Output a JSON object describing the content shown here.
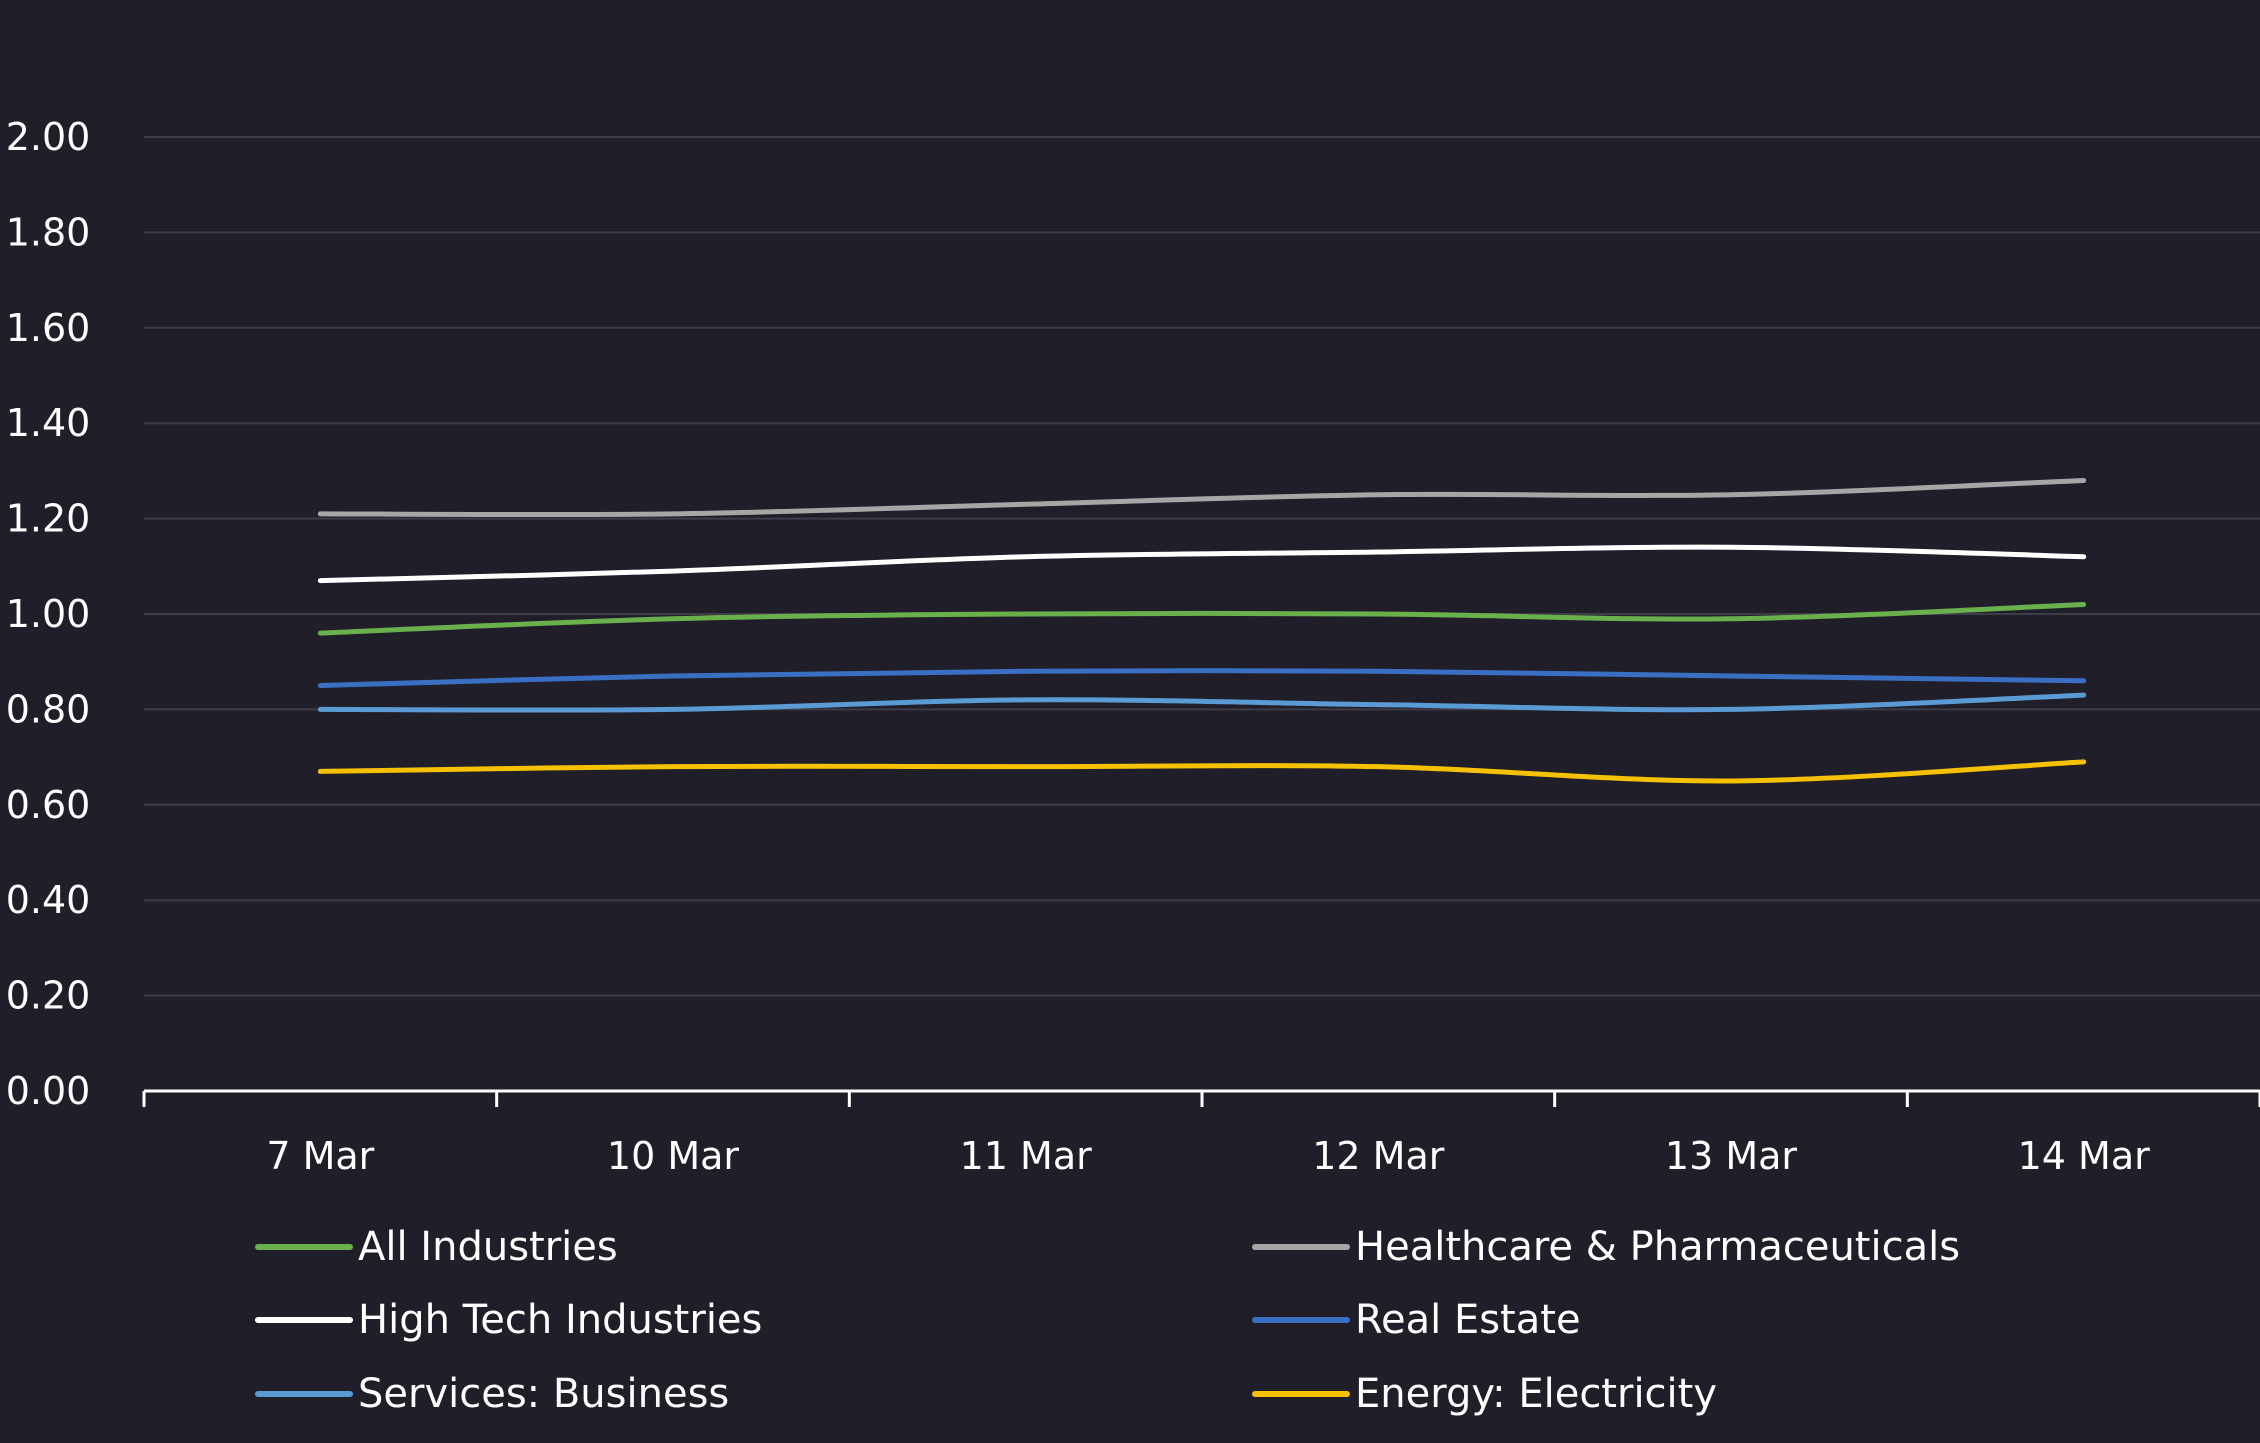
{
  "chart_data": {
    "type": "line",
    "title": "",
    "xlabel": "",
    "ylabel": "",
    "categories": [
      "7 Mar",
      "10 Mar",
      "11 Mar",
      "12 Mar",
      "13 Mar",
      "14 Mar"
    ],
    "ylim": [
      0,
      2
    ],
    "yticks": [
      "0.00",
      "0.20",
      "0.40",
      "0.60",
      "0.80",
      "1.00",
      "1.20",
      "1.40",
      "1.60",
      "1.80",
      "2.00"
    ],
    "grid": true,
    "smooth": true,
    "legend_position": "bottom",
    "series": [
      {
        "name": "All Industries",
        "color": "#6ab04c",
        "values": [
          0.96,
          0.99,
          1.0,
          1.0,
          0.99,
          1.02
        ]
      },
      {
        "name": "Healthcare & Pharmaceuticals",
        "color": "#a6a6a6",
        "values": [
          1.21,
          1.21,
          1.23,
          1.25,
          1.25,
          1.28
        ]
      },
      {
        "name": "High Tech Industries",
        "color": "#ffffff",
        "values": [
          1.07,
          1.09,
          1.12,
          1.13,
          1.14,
          1.12
        ]
      },
      {
        "name": "Real Estate",
        "color": "#3a6fc4",
        "values": [
          0.85,
          0.87,
          0.88,
          0.88,
          0.87,
          0.86
        ]
      },
      {
        "name": "Services: Business",
        "color": "#5b9bd5",
        "values": [
          0.8,
          0.8,
          0.82,
          0.81,
          0.8,
          0.83
        ]
      },
      {
        "name": "Energy: Electricity",
        "color": "#f5c100",
        "values": [
          0.67,
          0.68,
          0.68,
          0.68,
          0.65,
          0.69
        ]
      }
    ]
  },
  "colors": {
    "background": "#1f1e29",
    "gridline": "#3d3c47",
    "axis": "#ffffff",
    "text": "#ffffff"
  }
}
